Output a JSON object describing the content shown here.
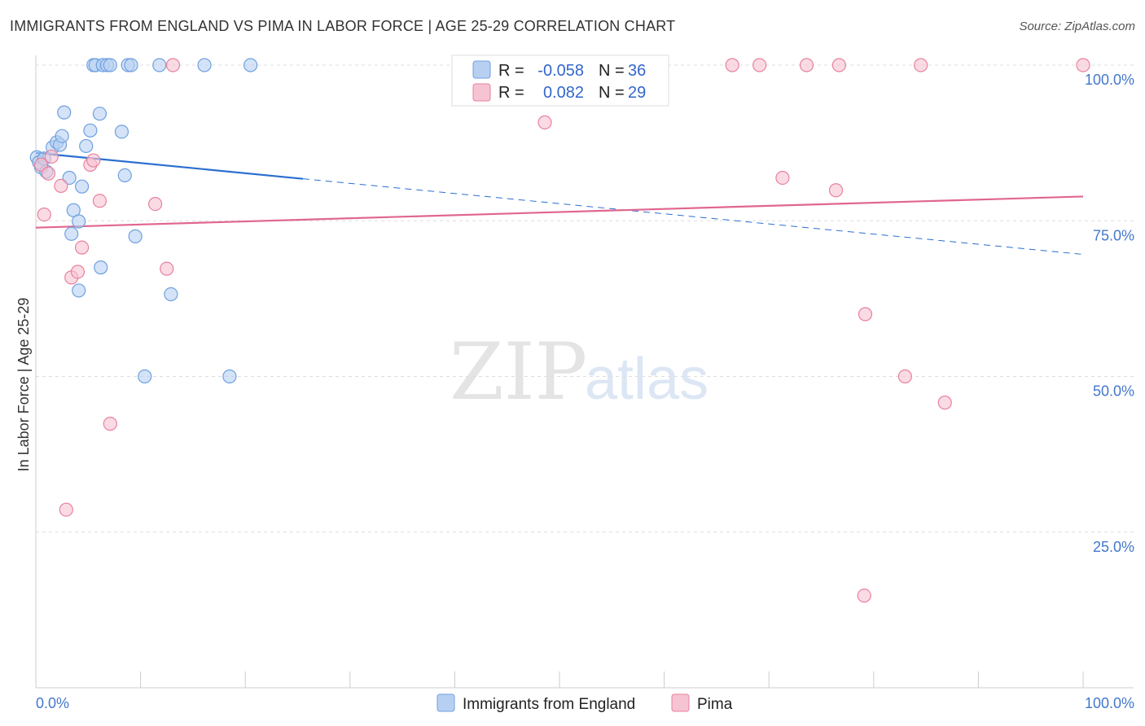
{
  "title": "IMMIGRANTS FROM ENGLAND VS PIMA IN LABOR FORCE | AGE 25-29 CORRELATION CHART",
  "source": "Source: ZipAtlas.com",
  "watermark": {
    "zip": "ZIP",
    "atlas": "atlas"
  },
  "legend": {
    "r_label": "R =",
    "n_label": "N =",
    "series": [
      {
        "r": "-0.058",
        "n": "36"
      },
      {
        "r": "0.082",
        "n": "29"
      }
    ]
  },
  "chart_data": {
    "type": "scatter",
    "title": "IMMIGRANTS FROM ENGLAND VS PIMA IN LABOR FORCE | AGE 25-29 CORRELATION CHART",
    "xlabel": "",
    "ylabel": "In Labor Force | Age 25-29",
    "xlim": [
      0,
      100
    ],
    "ylim": [
      0,
      100
    ],
    "x_tick_labels": [
      "0.0%",
      "100.0%"
    ],
    "y_ticks": [
      {
        "value": 25,
        "label": "25.0%"
      },
      {
        "value": 50,
        "label": "50.0%"
      },
      {
        "value": 75,
        "label": "75.0%"
      },
      {
        "value": 100,
        "label": "100.0%"
      }
    ],
    "series": [
      {
        "name": "Immigrants from England",
        "color": "#6fa0e0",
        "fill": "#b7d0f2",
        "points": [
          [
            0.1,
            85.2
          ],
          [
            0.3,
            84.4
          ],
          [
            0.5,
            83.6
          ],
          [
            0.8,
            85.0
          ],
          [
            1.0,
            82.9
          ],
          [
            1.6,
            86.8
          ],
          [
            2.0,
            87.6
          ],
          [
            2.3,
            87.2
          ],
          [
            2.5,
            88.6
          ],
          [
            2.7,
            92.4
          ],
          [
            3.2,
            81.9
          ],
          [
            3.4,
            72.9
          ],
          [
            3.6,
            76.7
          ],
          [
            4.1,
            74.9
          ],
          [
            4.1,
            63.8
          ],
          [
            4.4,
            80.5
          ],
          [
            4.8,
            87.0
          ],
          [
            5.2,
            89.5
          ],
          [
            5.5,
            100.0
          ],
          [
            5.7,
            100.0
          ],
          [
            6.1,
            92.2
          ],
          [
            6.2,
            67.5
          ],
          [
            6.4,
            100.0
          ],
          [
            6.8,
            100.0
          ],
          [
            7.1,
            100.0
          ],
          [
            8.2,
            89.3
          ],
          [
            8.5,
            82.3
          ],
          [
            8.8,
            100.0
          ],
          [
            9.1,
            100.0
          ],
          [
            9.5,
            72.5
          ],
          [
            10.4,
            50.0
          ],
          [
            11.8,
            100.0
          ],
          [
            12.9,
            63.2
          ],
          [
            16.1,
            100.0
          ],
          [
            18.5,
            50.0
          ],
          [
            20.5,
            100.0
          ]
        ],
        "trend": {
          "x0": 0,
          "y0": 85.9,
          "x_solid_end": 25.5,
          "x1": 100,
          "y1": 69.6
        }
      },
      {
        "name": "Pima",
        "color": "#e8809f",
        "fill": "#f6c3d2",
        "points": [
          [
            0.5,
            84.0
          ],
          [
            0.8,
            76.0
          ],
          [
            1.2,
            82.6
          ],
          [
            1.5,
            85.3
          ],
          [
            2.4,
            80.6
          ],
          [
            3.4,
            65.9
          ],
          [
            4.0,
            66.8
          ],
          [
            4.4,
            70.7
          ],
          [
            5.2,
            84.0
          ],
          [
            5.5,
            84.7
          ],
          [
            6.1,
            78.2
          ],
          [
            7.1,
            42.4
          ],
          [
            2.9,
            28.6
          ],
          [
            11.4,
            77.7
          ],
          [
            12.5,
            67.3
          ],
          [
            13.1,
            100.0
          ],
          [
            48.6,
            90.8
          ],
          [
            66.5,
            100.0
          ],
          [
            69.1,
            100.0
          ],
          [
            71.3,
            81.9
          ],
          [
            73.6,
            100.0
          ],
          [
            76.4,
            79.9
          ],
          [
            76.7,
            100.0
          ],
          [
            79.2,
            60.0
          ],
          [
            79.1,
            14.8
          ],
          [
            83.0,
            50.0
          ],
          [
            84.5,
            100.0
          ],
          [
            86.8,
            45.8
          ],
          [
            100.0,
            100.0
          ]
        ],
        "trend": {
          "x0": 0,
          "y0": 73.9,
          "x1": 100,
          "y1": 78.9
        }
      }
    ]
  }
}
